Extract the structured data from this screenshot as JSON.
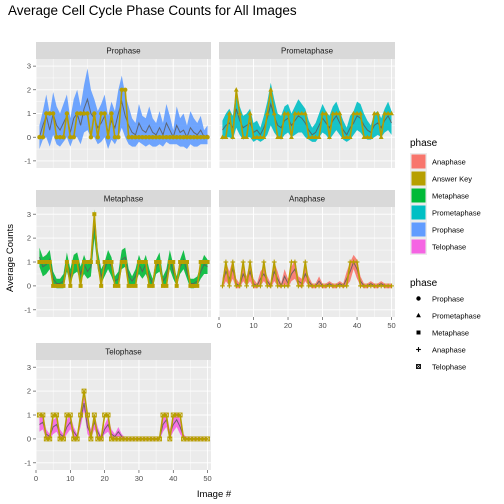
{
  "chart_data": {
    "type": "line",
    "title": "Average Cell Cycle Phase Counts for All Images",
    "xlabel": "Image #",
    "ylabel": "Average Counts",
    "xlim": [
      0,
      51
    ],
    "ylim": [
      -1.3,
      3.3
    ],
    "x_ticks": [
      0,
      10,
      20,
      30,
      40,
      50
    ],
    "y_ticks": [
      -1,
      0,
      1,
      2,
      3
    ],
    "grid": true,
    "colors": {
      "Anaphase": "#F8766D",
      "Answer Key": "#B79F00",
      "Metaphase": "#00BA38",
      "Prometaphase": "#00BFC4",
      "Prophase": "#619CFF",
      "Telophase": "#F564E3"
    },
    "legend": {
      "fill_title": "phase",
      "fill_entries": [
        "Anaphase",
        "Answer Key",
        "Metaphase",
        "Prometaphase",
        "Prophase",
        "Telophase"
      ],
      "shape_title": "phase",
      "shape_entries": [
        {
          "label": "Prophase",
          "shape": "circle"
        },
        {
          "label": "Prometaphase",
          "shape": "triangle"
        },
        {
          "label": "Metaphase",
          "shape": "square"
        },
        {
          "label": "Anaphase",
          "shape": "plus"
        },
        {
          "label": "Telophase",
          "shape": "square-cross"
        }
      ],
      "placement": "right"
    },
    "panels": [
      {
        "name": "Prophase",
        "color": "#619CFF",
        "shape": "circle",
        "x": [
          1,
          2,
          3,
          4,
          5,
          6,
          7,
          8,
          9,
          10,
          11,
          12,
          13,
          14,
          15,
          16,
          17,
          18,
          19,
          20,
          21,
          22,
          23,
          24,
          25,
          26,
          27,
          28,
          29,
          30,
          31,
          32,
          33,
          34,
          35,
          36,
          37,
          38,
          39,
          40,
          41,
          42,
          43,
          44,
          45,
          46,
          47,
          48,
          49,
          50
        ],
        "mean": [
          0,
          0.5,
          0.9,
          0.3,
          1.0,
          0.5,
          0.3,
          0.6,
          0.9,
          0.2,
          0.8,
          1.0,
          0.5,
          1.2,
          1.6,
          1.0,
          0.8,
          0.4,
          0.6,
          0.9,
          0.2,
          0.7,
          0.4,
          1.0,
          1.5,
          0.9,
          0.5,
          0.2,
          0.1,
          0.6,
          0.3,
          0.2,
          0.5,
          0.2,
          0.1,
          0.4,
          0.1,
          0.6,
          0.3,
          0.0,
          0.5,
          0.2,
          0.3,
          0.0,
          0.4,
          0.2,
          0.1,
          0.3,
          0.0,
          0.1
        ],
        "sd": [
          0.5,
          0.6,
          0.9,
          0.7,
          0.9,
          0.8,
          0.7,
          0.8,
          0.9,
          0.6,
          0.8,
          1.0,
          0.8,
          1.0,
          1.3,
          1.0,
          0.8,
          0.7,
          0.8,
          0.9,
          0.7,
          0.8,
          0.7,
          1.0,
          1.1,
          0.9,
          0.8,
          0.6,
          0.5,
          0.8,
          0.6,
          0.6,
          0.8,
          0.6,
          0.5,
          0.7,
          0.5,
          0.8,
          0.6,
          0.3,
          0.8,
          0.6,
          0.7,
          0.5,
          0.7,
          0.6,
          0.5,
          0.6,
          0.3,
          0.4
        ],
        "answer": [
          0,
          0,
          1,
          1,
          1,
          0,
          0,
          0,
          1,
          0,
          0,
          1,
          1,
          1,
          1,
          0,
          1,
          0,
          1,
          1,
          0,
          1,
          0,
          0,
          2,
          2,
          0,
          0,
          0,
          0,
          0,
          0,
          0,
          0,
          0,
          0,
          0,
          0,
          0,
          0,
          0,
          0,
          0,
          0,
          0,
          0,
          0,
          0,
          0,
          0
        ]
      },
      {
        "name": "Prometaphase",
        "color": "#00BFC4",
        "shape": "triangle",
        "x": [
          1,
          2,
          3,
          4,
          5,
          6,
          7,
          8,
          9,
          10,
          11,
          12,
          13,
          14,
          15,
          16,
          17,
          18,
          19,
          20,
          21,
          22,
          23,
          24,
          25,
          26,
          27,
          28,
          29,
          30,
          31,
          32,
          33,
          34,
          35,
          36,
          37,
          38,
          39,
          40,
          41,
          42,
          43,
          44,
          45,
          46,
          47,
          48,
          49,
          50
        ],
        "mean": [
          0.3,
          0.5,
          0.6,
          0.4,
          1.2,
          0.7,
          0.4,
          0.5,
          0.6,
          0.2,
          0.3,
          0.1,
          0.4,
          0.8,
          1.4,
          0.9,
          0.5,
          0.4,
          0.7,
          0.8,
          0.5,
          0.7,
          0.9,
          0.8,
          0.6,
          0.3,
          0.1,
          0.2,
          0.5,
          0.8,
          0.6,
          0.4,
          0.7,
          0.9,
          0.6,
          0.3,
          0.1,
          0.4,
          0.6,
          0.9,
          0.8,
          0.5,
          0.3,
          0.2,
          0.5,
          0.6,
          0.4,
          0.7,
          0.9,
          0.6
        ],
        "sd": [
          0.4,
          0.5,
          0.6,
          0.5,
          0.8,
          0.6,
          0.5,
          0.5,
          0.6,
          0.4,
          0.4,
          0.3,
          0.5,
          0.7,
          0.9,
          0.7,
          0.5,
          0.5,
          0.6,
          0.6,
          0.5,
          0.6,
          0.7,
          0.6,
          0.6,
          0.4,
          0.3,
          0.4,
          0.5,
          0.6,
          0.5,
          0.5,
          0.6,
          0.6,
          0.5,
          0.4,
          0.3,
          0.5,
          0.5,
          0.6,
          0.6,
          0.5,
          0.4,
          0.3,
          0.5,
          0.5,
          0.4,
          0.5,
          0.6,
          0.5
        ],
        "answer": [
          0,
          0,
          1,
          0,
          2,
          1,
          0,
          0,
          1,
          0,
          0,
          0,
          0,
          1,
          2,
          1,
          0,
          0,
          1,
          1,
          0,
          1,
          1,
          1,
          1,
          0,
          0,
          0,
          0,
          1,
          1,
          0,
          1,
          1,
          1,
          0,
          0,
          0,
          1,
          1,
          1,
          0,
          0,
          0,
          1,
          1,
          0,
          1,
          1,
          1
        ]
      },
      {
        "name": "Metaphase",
        "color": "#00BA38",
        "shape": "square",
        "x": [
          1,
          2,
          3,
          4,
          5,
          6,
          7,
          8,
          9,
          10,
          11,
          12,
          13,
          14,
          15,
          16,
          17,
          18,
          19,
          20,
          21,
          22,
          23,
          24,
          25,
          26,
          27,
          28,
          29,
          30,
          31,
          32,
          33,
          34,
          35,
          36,
          37,
          38,
          39,
          40,
          41,
          42,
          43,
          44,
          45,
          46,
          47,
          48,
          49,
          50
        ],
        "mean": [
          1.2,
          0.8,
          0.9,
          1.1,
          0.3,
          0.1,
          0.1,
          0.2,
          1.0,
          0.4,
          0.9,
          1.0,
          0.5,
          0.9,
          0.6,
          0.8,
          2.6,
          1.1,
          0.4,
          0.7,
          1.1,
          0.8,
          0.2,
          0.3,
          1.1,
          1.2,
          0.4,
          0.2,
          0.4,
          0.9,
          0.6,
          0.9,
          0.4,
          0.1,
          0.8,
          1.0,
          0.2,
          0.4,
          1.1,
          0.6,
          0.2,
          0.8,
          1.1,
          0.6,
          0.1,
          0.1,
          0.2,
          0.6,
          0.9,
          0.8
        ],
        "sd": [
          0.4,
          0.4,
          0.4,
          0.4,
          0.3,
          0.2,
          0.2,
          0.3,
          0.4,
          0.3,
          0.4,
          0.4,
          0.3,
          0.4,
          0.3,
          0.4,
          0.6,
          0.4,
          0.3,
          0.3,
          0.4,
          0.4,
          0.2,
          0.3,
          0.4,
          0.4,
          0.3,
          0.2,
          0.3,
          0.4,
          0.3,
          0.4,
          0.3,
          0.2,
          0.3,
          0.4,
          0.2,
          0.3,
          0.4,
          0.3,
          0.2,
          0.3,
          0.4,
          0.3,
          0.2,
          0.2,
          0.2,
          0.3,
          0.4,
          0.3
        ],
        "answer": [
          1,
          1,
          1,
          1,
          0,
          0,
          0,
          0,
          1,
          0,
          1,
          1,
          0,
          1,
          1,
          1,
          3,
          1,
          0,
          1,
          1,
          1,
          0,
          0,
          1,
          1,
          0,
          0,
          0,
          1,
          1,
          1,
          0,
          0,
          1,
          1,
          0,
          0,
          1,
          1,
          0,
          1,
          1,
          1,
          0,
          0,
          0,
          1,
          1,
          1
        ]
      },
      {
        "name": "Anaphase",
        "color": "#F8766D",
        "shape": "plus",
        "x": [
          1,
          2,
          3,
          4,
          5,
          6,
          7,
          8,
          9,
          10,
          11,
          12,
          13,
          14,
          15,
          16,
          17,
          18,
          19,
          20,
          21,
          22,
          23,
          24,
          25,
          26,
          27,
          28,
          29,
          30,
          31,
          32,
          33,
          34,
          35,
          36,
          37,
          38,
          39,
          40,
          41,
          42,
          43,
          44,
          45,
          46,
          47,
          48,
          49,
          50
        ],
        "mean": [
          0.1,
          0.6,
          0.3,
          0.7,
          0.1,
          0.0,
          0.5,
          0.2,
          0.6,
          0.1,
          0.0,
          0.3,
          0.5,
          0.2,
          0.0,
          0.6,
          0.3,
          0.0,
          0.4,
          0.1,
          0.5,
          0.7,
          0.2,
          0.1,
          0.5,
          0.2,
          0.0,
          0.0,
          0.2,
          0.0,
          0.0,
          0.1,
          0.0,
          0.0,
          0.1,
          0.0,
          0.3,
          0.6,
          1.0,
          0.7,
          0.2,
          0.0,
          0.0,
          0.1,
          0.0,
          0.0,
          0.1,
          0.0,
          0.0,
          0.0
        ],
        "sd": [
          0.2,
          0.4,
          0.3,
          0.4,
          0.2,
          0.1,
          0.3,
          0.2,
          0.4,
          0.2,
          0.1,
          0.3,
          0.3,
          0.2,
          0.1,
          0.4,
          0.3,
          0.1,
          0.3,
          0.2,
          0.3,
          0.4,
          0.2,
          0.2,
          0.3,
          0.2,
          0.1,
          0.1,
          0.2,
          0.1,
          0.1,
          0.1,
          0.1,
          0.1,
          0.1,
          0.1,
          0.3,
          0.4,
          0.3,
          0.4,
          0.2,
          0.1,
          0.1,
          0.1,
          0.1,
          0.1,
          0.1,
          0.1,
          0.1,
          0.1
        ],
        "answer": [
          0,
          1,
          0,
          1,
          0,
          0,
          1,
          0,
          1,
          0,
          0,
          0,
          1,
          0,
          0,
          1,
          0,
          0,
          0,
          0,
          1,
          1,
          0,
          0,
          1,
          0,
          0,
          0,
          0,
          0,
          0,
          0,
          0,
          0,
          0,
          0,
          0,
          1,
          1,
          1,
          0,
          0,
          0,
          0,
          0,
          0,
          0,
          0,
          0,
          0
        ]
      },
      {
        "name": "Telophase",
        "color": "#F564E3",
        "shape": "square-cross",
        "x": [
          1,
          2,
          3,
          4,
          5,
          6,
          7,
          8,
          9,
          10,
          11,
          12,
          13,
          14,
          15,
          16,
          17,
          18,
          19,
          20,
          21,
          22,
          23,
          24,
          25,
          26,
          27,
          28,
          29,
          30,
          31,
          32,
          33,
          34,
          35,
          36,
          37,
          38,
          39,
          40,
          41,
          42,
          43,
          44,
          45,
          46,
          47,
          48,
          49,
          50
        ],
        "mean": [
          0.6,
          0.7,
          0.2,
          0.1,
          0.5,
          0.6,
          0.2,
          0.1,
          0.5,
          0.7,
          0.3,
          0.1,
          0.8,
          1.5,
          0.5,
          0.2,
          0.7,
          0.3,
          0.0,
          0.4,
          0.6,
          0.2,
          0.1,
          0.3,
          0.1,
          0.0,
          0.0,
          0.0,
          0.0,
          0.0,
          0.0,
          0.0,
          0.0,
          0.0,
          0.0,
          0.0,
          0.6,
          0.8,
          0.2,
          0.6,
          0.8,
          0.5,
          0.1,
          0.0,
          0.0,
          0.0,
          0.0,
          0.0,
          0.0,
          0.0
        ],
        "sd": [
          0.3,
          0.3,
          0.2,
          0.1,
          0.3,
          0.3,
          0.2,
          0.1,
          0.3,
          0.3,
          0.2,
          0.1,
          0.3,
          0.3,
          0.3,
          0.2,
          0.3,
          0.2,
          0.1,
          0.2,
          0.3,
          0.2,
          0.1,
          0.2,
          0.1,
          0.05,
          0.05,
          0.05,
          0.05,
          0.05,
          0.05,
          0.05,
          0.05,
          0.05,
          0.05,
          0.05,
          0.3,
          0.3,
          0.2,
          0.3,
          0.3,
          0.3,
          0.1,
          0.05,
          0.05,
          0.05,
          0.05,
          0.05,
          0.05,
          0.05
        ],
        "answer": [
          1,
          1,
          0,
          0,
          1,
          1,
          0,
          0,
          1,
          1,
          0,
          0,
          1,
          2,
          1,
          0,
          1,
          0,
          0,
          1,
          1,
          0,
          0,
          0,
          0,
          0,
          0,
          0,
          0,
          0,
          0,
          0,
          0,
          0,
          0,
          0,
          1,
          1,
          0,
          1,
          1,
          1,
          0,
          0,
          0,
          0,
          0,
          0,
          0,
          0
        ]
      }
    ]
  }
}
